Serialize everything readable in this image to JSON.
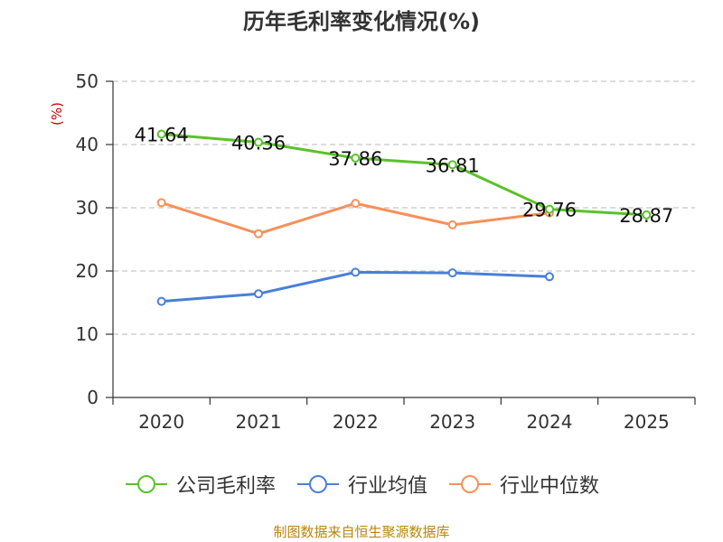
{
  "chart_data": {
    "type": "line",
    "title": "历年毛利率变化情况(%)",
    "ylabel": "(%)",
    "xlabel": "",
    "categories": [
      "2020",
      "2021",
      "2022",
      "2023",
      "2024",
      "2025"
    ],
    "ylim": [
      0,
      50
    ],
    "yticks": [
      0,
      10,
      20,
      30,
      40,
      50
    ],
    "grid": true,
    "legend_position": "bottom",
    "series": [
      {
        "name": "公司毛利率",
        "color": "#5ac229",
        "values": [
          41.64,
          40.36,
          37.86,
          36.81,
          29.76,
          28.87
        ],
        "labels": [
          "41.64",
          "40.36",
          "37.86",
          "36.81",
          "29.76",
          "28.87"
        ]
      },
      {
        "name": "行业均值",
        "color": "#4a7fd8",
        "values": [
          15.2,
          16.4,
          19.8,
          19.7,
          19.1,
          null
        ],
        "labels": []
      },
      {
        "name": "行业中位数",
        "color": "#f7905a",
        "values": [
          30.8,
          25.9,
          30.7,
          27.3,
          29.2,
          null
        ],
        "labels": []
      }
    ]
  },
  "source": "制图数据来自恒生聚源数据库"
}
